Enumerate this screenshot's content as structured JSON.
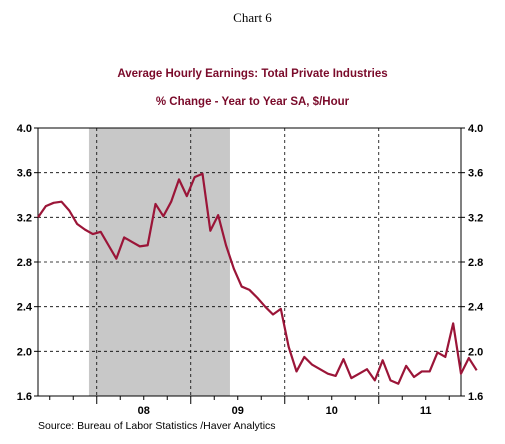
{
  "chart_number": "Chart 6",
  "colors": {
    "title": "#7a0a2a",
    "line": "#9b1538",
    "recession": "#c8c8c8"
  },
  "source": "Source:  Bureau of Labor Statistics /Haver Analytics",
  "chart_data": {
    "type": "line",
    "title": "Average Hourly Earnings: Total Private Industries",
    "subtitle": "% Change - Year to Year    SA, $/Hour",
    "xlabel": "",
    "ylabel": "",
    "xlim": [
      2007.375,
      2011.875
    ],
    "ylim": [
      1.6,
      4.0
    ],
    "yticks": [
      1.6,
      2.0,
      2.4,
      2.8,
      3.2,
      3.6,
      4.0
    ],
    "ytick_labels": [
      "1.6",
      "2.0",
      "2.4",
      "2.8",
      "3.2",
      "3.6",
      "4.0"
    ],
    "xcategory_labels": [
      {
        "label": "08",
        "x": 2008.5
      },
      {
        "label": "09",
        "x": 2009.5
      },
      {
        "label": "10",
        "x": 2010.5
      },
      {
        "label": "11",
        "x": 2011.5
      }
    ],
    "year_gridlines": [
      2008,
      2009,
      2010,
      2011
    ],
    "minor_ticks_per_year": 4,
    "grid": "dashed vertical lines at year starts, dashed horizontal lines at y ticks",
    "shaded_regions": [
      {
        "start": 2007.917,
        "end": 2009.417,
        "label": ""
      }
    ],
    "series": [
      {
        "name": "",
        "x_start": 2007.375,
        "x_step_months": 1,
        "values": [
          3.2,
          3.3,
          3.33,
          3.34,
          3.26,
          3.14,
          3.09,
          3.05,
          3.07,
          2.95,
          2.83,
          3.02,
          2.98,
          2.94,
          2.95,
          3.32,
          3.21,
          3.34,
          3.54,
          3.39,
          3.56,
          3.59,
          3.08,
          3.22,
          2.95,
          2.74,
          2.58,
          2.55,
          2.48,
          2.4,
          2.33,
          2.38,
          2.04,
          1.82,
          1.95,
          1.88,
          1.84,
          1.8,
          1.78,
          1.93,
          1.76,
          1.8,
          1.84,
          1.74,
          1.92,
          1.74,
          1.71,
          1.87,
          1.77,
          1.82,
          1.82,
          1.99,
          1.95,
          2.25,
          1.8,
          1.94,
          1.83
        ]
      }
    ]
  }
}
